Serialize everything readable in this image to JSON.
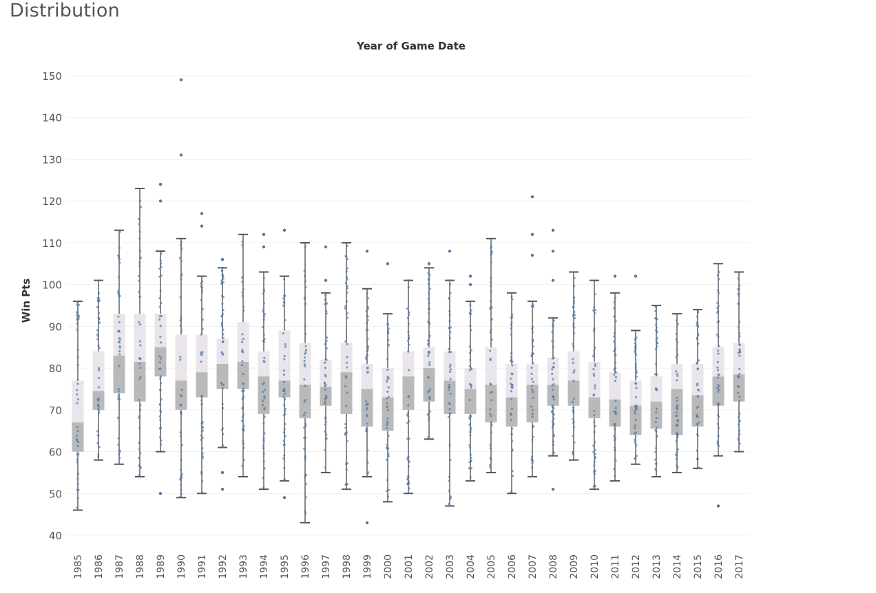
{
  "sheet": {
    "title": "Distribution"
  },
  "chart_data": {
    "type": "box",
    "title": "Year of Game Date",
    "xlabel": "",
    "ylabel": "Win Pts",
    "ylim": [
      38,
      153
    ],
    "yticks": [
      40,
      50,
      60,
      70,
      80,
      90,
      100,
      110,
      120,
      130,
      140,
      150
    ],
    "grid": true,
    "colors": {
      "dot": "#4e79a7",
      "lower_box": "#b9b9b9",
      "upper_box": "#e9e5ea",
      "whisker": "#555555",
      "grid": "#f0f0f0"
    },
    "boxes": [
      {
        "year": "1985",
        "min": 46,
        "q1": 60,
        "median": 67,
        "q3": 77,
        "max": 96,
        "outliers": []
      },
      {
        "year": "1986",
        "min": 58,
        "q1": 70,
        "median": 74.5,
        "q3": 84,
        "max": 101,
        "outliers": []
      },
      {
        "year": "1987",
        "min": 57,
        "q1": 74,
        "median": 83,
        "q3": 93,
        "max": 113,
        "outliers": []
      },
      {
        "year": "1988",
        "min": 54,
        "q1": 72,
        "median": 81.5,
        "q3": 93,
        "max": 123,
        "outliers": []
      },
      {
        "year": "1989",
        "min": 60,
        "q1": 78,
        "median": 85,
        "q3": 93,
        "max": 108,
        "outliers": [
          50,
          120,
          124
        ]
      },
      {
        "year": "1990",
        "min": 49,
        "q1": 70,
        "median": 77,
        "q3": 88,
        "max": 111,
        "outliers": [
          131,
          149
        ]
      },
      {
        "year": "1991",
        "min": 50,
        "q1": 73,
        "median": 79,
        "q3": 88,
        "max": 102,
        "outliers": [
          114,
          117
        ]
      },
      {
        "year": "1992",
        "min": 61,
        "q1": 75,
        "median": 81,
        "q3": 87,
        "max": 104,
        "outliers": [
          51,
          55,
          106
        ]
      },
      {
        "year": "1993",
        "min": 54,
        "q1": 75,
        "median": 81.5,
        "q3": 91,
        "max": 112,
        "outliers": []
      },
      {
        "year": "1994",
        "min": 51,
        "q1": 69,
        "median": 78,
        "q3": 84,
        "max": 103,
        "outliers": [
          109,
          112
        ]
      },
      {
        "year": "1995",
        "min": 53,
        "q1": 73,
        "median": 77,
        "q3": 89,
        "max": 102,
        "outliers": [
          49,
          113
        ]
      },
      {
        "year": "1996",
        "min": 43,
        "q1": 68,
        "median": 76,
        "q3": 86,
        "max": 110,
        "outliers": []
      },
      {
        "year": "1997",
        "min": 55,
        "q1": 71,
        "median": 75.5,
        "q3": 82,
        "max": 98,
        "outliers": [
          101,
          109
        ]
      },
      {
        "year": "1998",
        "min": 51,
        "q1": 69,
        "median": 79,
        "q3": 86,
        "max": 110,
        "outliers": []
      },
      {
        "year": "1999",
        "min": 54,
        "q1": 66,
        "median": 75,
        "q3": 81,
        "max": 99,
        "outliers": [
          43,
          108
        ]
      },
      {
        "year": "2000",
        "min": 48,
        "q1": 65,
        "median": 73,
        "q3": 80,
        "max": 93,
        "outliers": [
          105
        ]
      },
      {
        "year": "2001",
        "min": 50,
        "q1": 70,
        "median": 78,
        "q3": 84,
        "max": 101,
        "outliers": []
      },
      {
        "year": "2002",
        "min": 63,
        "q1": 72,
        "median": 80,
        "q3": 85,
        "max": 104,
        "outliers": [
          105
        ]
      },
      {
        "year": "2003",
        "min": 47,
        "q1": 69,
        "median": 77,
        "q3": 84,
        "max": 101,
        "outliers": [
          108
        ]
      },
      {
        "year": "2004",
        "min": 53,
        "q1": 69,
        "median": 75,
        "q3": 80,
        "max": 96,
        "outliers": [
          100,
          102
        ]
      },
      {
        "year": "2005",
        "min": 55,
        "q1": 67,
        "median": 76,
        "q3": 85,
        "max": 111,
        "outliers": []
      },
      {
        "year": "2006",
        "min": 50,
        "q1": 66,
        "median": 73,
        "q3": 81,
        "max": 98,
        "outliers": []
      },
      {
        "year": "2007",
        "min": 54,
        "q1": 67,
        "median": 76,
        "q3": 81,
        "max": 96,
        "outliers": [
          107,
          112,
          121
        ]
      },
      {
        "year": "2008",
        "min": 59,
        "q1": 71,
        "median": 76,
        "q3": 82.5,
        "max": 92,
        "outliers": [
          51,
          101,
          108,
          113
        ]
      },
      {
        "year": "2009",
        "min": 58,
        "q1": 71,
        "median": 77,
        "q3": 84,
        "max": 103,
        "outliers": []
      },
      {
        "year": "2010",
        "min": 51,
        "q1": 68,
        "median": 73,
        "q3": 81.5,
        "max": 101,
        "outliers": []
      },
      {
        "year": "2011",
        "min": 53,
        "q1": 66,
        "median": 72.5,
        "q3": 79,
        "max": 98,
        "outliers": [
          102
        ]
      },
      {
        "year": "2012",
        "min": 57,
        "q1": 64,
        "median": 71,
        "q3": 77,
        "max": 89,
        "outliers": [
          102
        ]
      },
      {
        "year": "2013",
        "min": 54,
        "q1": 65.5,
        "median": 72,
        "q3": 78,
        "max": 95,
        "outliers": []
      },
      {
        "year": "2014",
        "min": 55,
        "q1": 64,
        "median": 75,
        "q3": 81,
        "max": 93,
        "outliers": []
      },
      {
        "year": "2015",
        "min": 56,
        "q1": 66,
        "median": 73.5,
        "q3": 81,
        "max": 94,
        "outliers": []
      },
      {
        "year": "2016",
        "min": 59,
        "q1": 71,
        "median": 78,
        "q3": 85,
        "max": 105,
        "outliers": [
          47
        ]
      },
      {
        "year": "2017",
        "min": 60,
        "q1": 72,
        "median": 78.5,
        "q3": 86,
        "max": 103,
        "outliers": []
      }
    ]
  }
}
